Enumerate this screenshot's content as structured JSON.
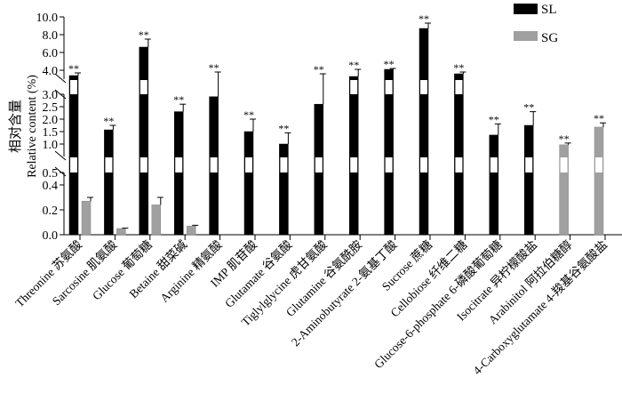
{
  "chart_data": {
    "type": "bar",
    "ylabel_cn": "相对含量",
    "ylabel": "Relative content (%)",
    "y_axis_breaks": [
      [
        0.5,
        0.5
      ],
      [
        3.0,
        3.0
      ]
    ],
    "ylim": [
      0,
      10
    ],
    "yticks_lower": [
      "0.0",
      "0.2",
      "0.4"
    ],
    "yticks_middle": [
      "0.5",
      "1.0",
      "1.5",
      "2.0",
      "2.5",
      "3.0"
    ],
    "yticks_upper": [
      "4.0",
      "6.0",
      "8.0",
      "10.0"
    ],
    "grid": false,
    "legend_position": "top-right",
    "significance_mark": "**",
    "categories": [
      "Threonine 苏氨酸",
      "Sarcosine 肌氨酸",
      "Glucose 葡萄糖",
      "Betaine 甜菜碱",
      "Arginine 精氨酸",
      "IMP 肌苷酸",
      "Glutamate 谷氨酸",
      "Tiglylglycine 虎甘氨酸",
      "Glutamine 谷氨酰胺",
      "2-Aminobutyrate 2-氨基丁酸",
      "Sucrose 蔗糖",
      "Cellobiose 纤维二糖",
      "Glucose-6-phosphate 6-磷酸葡萄糖",
      "Isocitrate 异柠檬酸盐",
      "Arabinitol 阿拉伯糖醇",
      "4-Carboxyglutamate 4-羧基谷氨酸盐"
    ],
    "series": [
      {
        "name": "SL",
        "color": "#000000",
        "values": [
          3.4,
          1.57,
          6.6,
          2.3,
          2.9,
          1.5,
          1.0,
          2.6,
          3.3,
          4.1,
          8.7,
          3.6,
          1.36,
          1.75,
          null,
          null
        ],
        "error": [
          0.3,
          0.18,
          0.9,
          0.3,
          0.9,
          0.5,
          0.45,
          1.0,
          0.8,
          0.1,
          0.6,
          0.2,
          0.45,
          0.55,
          null,
          null
        ]
      },
      {
        "name": "SG",
        "color": "#a0a0a0",
        "values": [
          0.27,
          0.05,
          0.24,
          0.07,
          null,
          null,
          null,
          null,
          null,
          null,
          null,
          null,
          null,
          null,
          0.97,
          1.68
        ],
        "error": [
          0.03,
          0.003,
          0.06,
          0.006,
          null,
          null,
          null,
          null,
          null,
          null,
          null,
          null,
          null,
          null,
          0.07,
          0.17
        ]
      }
    ],
    "significant": [
      true,
      true,
      true,
      true,
      true,
      true,
      true,
      true,
      true,
      true,
      true,
      true,
      true,
      true,
      true,
      true
    ]
  }
}
